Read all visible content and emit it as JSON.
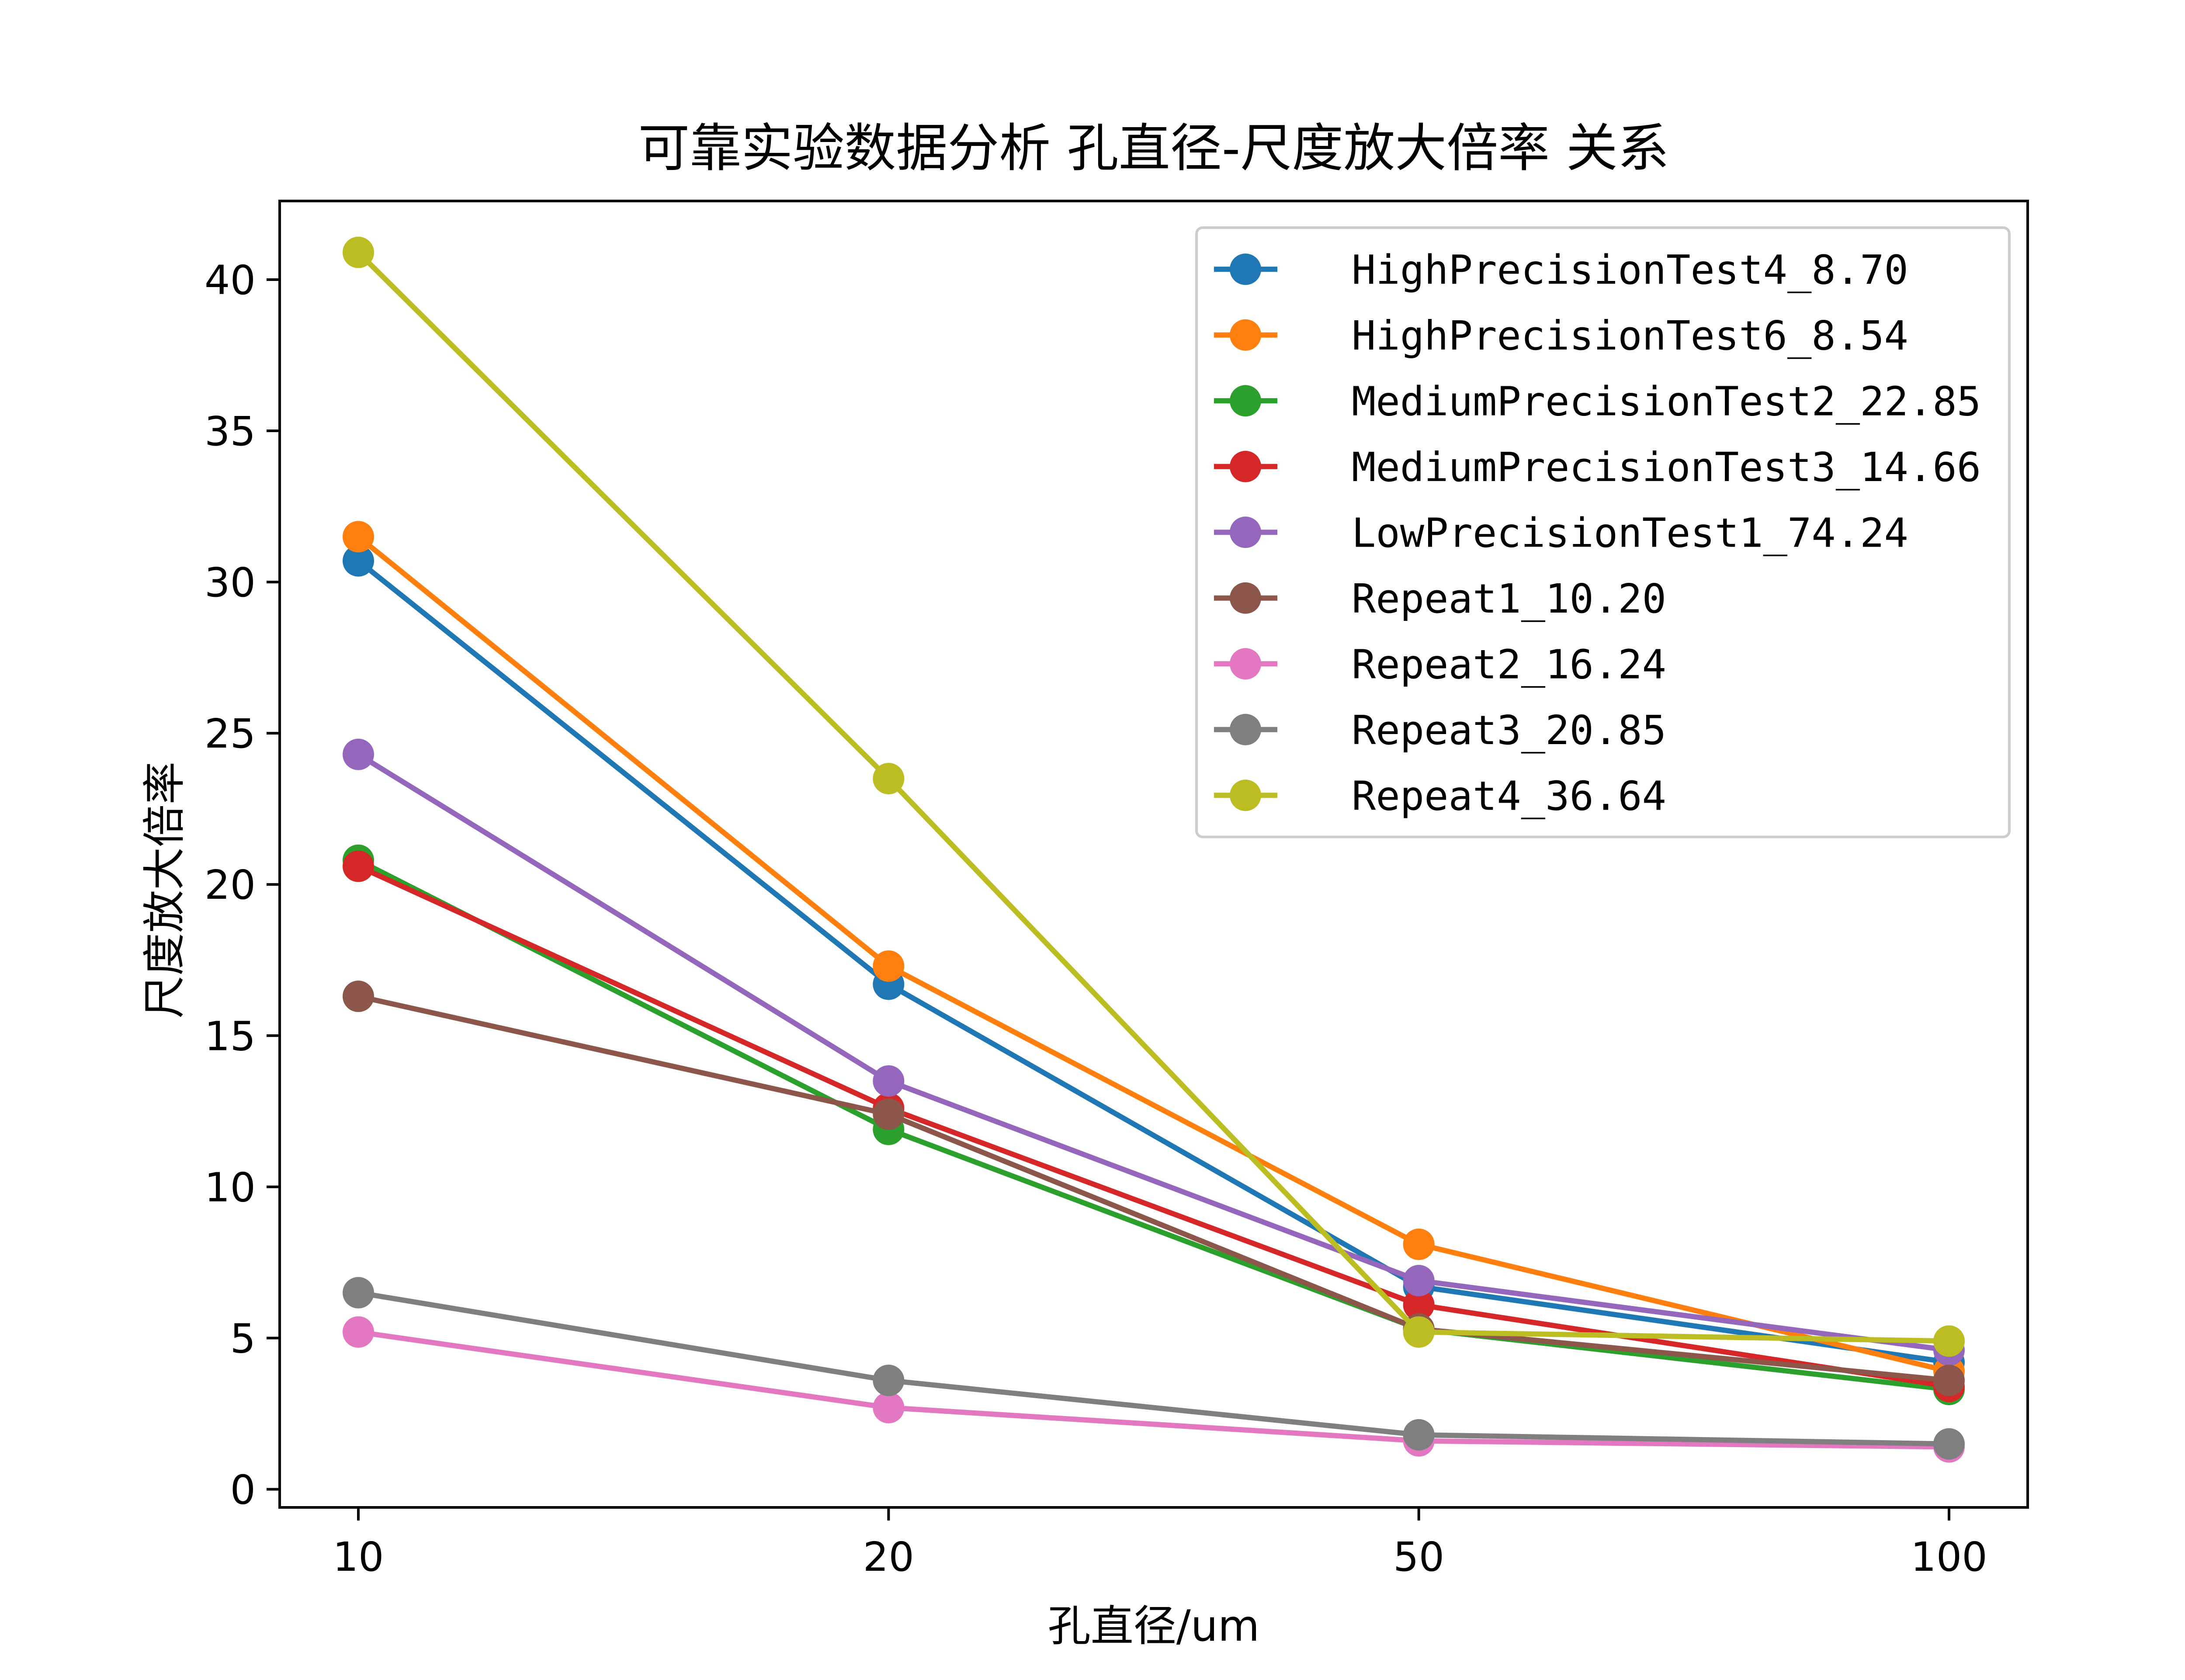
{
  "chart_data": {
    "type": "line",
    "title": "可靠实验数据分析 孔直径-尺度放大倍率 关系",
    "xlabel": "孔直径/um",
    "ylabel": "尺度放大倍率",
    "categories": [
      "10",
      "20",
      "50",
      "100"
    ],
    "yticks": [
      "0",
      "5",
      "10",
      "15",
      "20",
      "25",
      "30",
      "35",
      "40"
    ],
    "ylim": [
      -0.6,
      42.6
    ],
    "grid": false,
    "legend_position": "top-right",
    "series": [
      {
        "name": "HighPrecisionTest4_8.70",
        "color": "#1f77b4",
        "values": [
          30.7,
          16.7,
          6.7,
          4.2
        ]
      },
      {
        "name": "HighPrecisionTest6_8.54",
        "color": "#ff7f0e",
        "values": [
          31.5,
          17.3,
          8.1,
          3.9
        ]
      },
      {
        "name": "MediumPrecisionTest2_22.85",
        "color": "#2ca02c",
        "values": [
          20.8,
          11.9,
          5.3,
          3.3
        ]
      },
      {
        "name": "MediumPrecisionTest3_14.66",
        "color": "#d62728",
        "values": [
          20.6,
          12.6,
          6.1,
          3.4
        ]
      },
      {
        "name": "LowPrecisionTest1_74.24",
        "color": "#9467bd",
        "values": [
          24.3,
          13.5,
          6.9,
          4.6
        ]
      },
      {
        "name": "Repeat1_10.20",
        "color": "#8c564b",
        "values": [
          16.3,
          12.4,
          5.3,
          3.6
        ]
      },
      {
        "name": "Repeat2_16.24",
        "color": "#e377c2",
        "values": [
          5.2,
          2.7,
          1.6,
          1.4
        ]
      },
      {
        "name": "Repeat3_20.85",
        "color": "#7f7f7f",
        "values": [
          6.5,
          3.6,
          1.8,
          1.5
        ]
      },
      {
        "name": "Repeat4_36.64",
        "color": "#bcbd22",
        "values": [
          40.9,
          23.5,
          5.2,
          4.9
        ]
      }
    ]
  }
}
